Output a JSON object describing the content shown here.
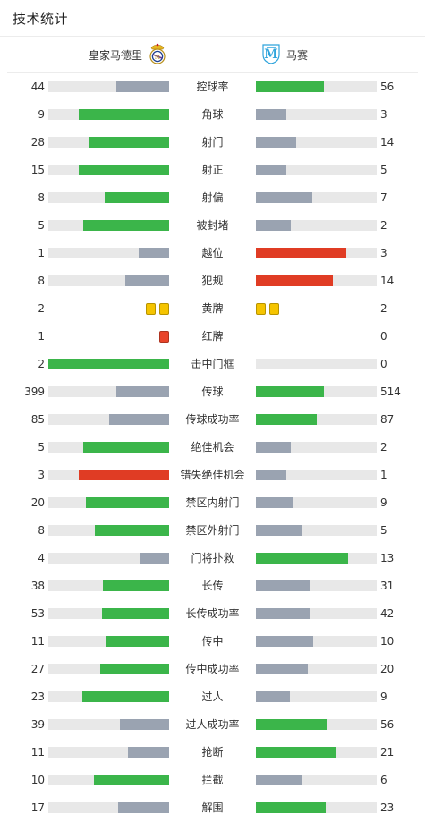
{
  "header": {
    "title": "技术统计"
  },
  "teams": {
    "home": {
      "name": "皇家马德里"
    },
    "away": {
      "name": "马赛"
    }
  },
  "colors": {
    "win": "#3bb54a",
    "lose": "#9aa3b1",
    "highlight": "#e03c24",
    "track": "#e8e8e8",
    "yellow_card": "#f5c400",
    "red_card": "#e8442a"
  },
  "stats": [
    {
      "label": "控球率",
      "home": "44",
      "away": "56",
      "home_frac": 0.44,
      "away_frac": 0.56,
      "home_color": "lose",
      "away_color": "win"
    },
    {
      "label": "角球",
      "home": "9",
      "away": "3",
      "home_frac": 0.75,
      "away_frac": 0.25,
      "home_color": "win",
      "away_color": "lose"
    },
    {
      "label": "射门",
      "home": "28",
      "away": "14",
      "home_frac": 0.667,
      "away_frac": 0.333,
      "home_color": "win",
      "away_color": "lose"
    },
    {
      "label": "射正",
      "home": "15",
      "away": "5",
      "home_frac": 0.75,
      "away_frac": 0.25,
      "home_color": "win",
      "away_color": "lose"
    },
    {
      "label": "射偏",
      "home": "8",
      "away": "7",
      "home_frac": 0.533,
      "away_frac": 0.467,
      "home_color": "win",
      "away_color": "lose"
    },
    {
      "label": "被封堵",
      "home": "5",
      "away": "2",
      "home_frac": 0.714,
      "away_frac": 0.286,
      "home_color": "win",
      "away_color": "lose"
    },
    {
      "label": "越位",
      "home": "1",
      "away": "3",
      "home_frac": 0.25,
      "away_frac": 0.75,
      "home_color": "lose",
      "away_color": "highlight"
    },
    {
      "label": "犯规",
      "home": "8",
      "away": "14",
      "home_frac": 0.364,
      "away_frac": 0.636,
      "home_color": "lose",
      "away_color": "highlight"
    },
    {
      "label": "黄牌",
      "home": "2",
      "away": "2",
      "kind": "yellow",
      "home_cards": 2,
      "away_cards": 2
    },
    {
      "label": "红牌",
      "home": "1",
      "away": "0",
      "kind": "red",
      "home_cards": 1,
      "away_cards": 0
    },
    {
      "label": "击中门框",
      "home": "2",
      "away": "0",
      "home_frac": 1.0,
      "away_frac": 0.0,
      "home_color": "win",
      "away_color": "lose"
    },
    {
      "label": "传球",
      "home": "399",
      "away": "514",
      "home_frac": 0.437,
      "away_frac": 0.563,
      "home_color": "lose",
      "away_color": "win"
    },
    {
      "label": "传球成功率",
      "home": "85",
      "away": "87",
      "home_frac": 0.494,
      "away_frac": 0.506,
      "home_color": "lose",
      "away_color": "win"
    },
    {
      "label": "绝佳机会",
      "home": "5",
      "away": "2",
      "home_frac": 0.714,
      "away_frac": 0.286,
      "home_color": "win",
      "away_color": "lose"
    },
    {
      "label": "错失绝佳机会",
      "home": "3",
      "away": "1",
      "home_frac": 0.75,
      "away_frac": 0.25,
      "home_color": "highlight",
      "away_color": "lose"
    },
    {
      "label": "禁区内射门",
      "home": "20",
      "away": "9",
      "home_frac": 0.69,
      "away_frac": 0.31,
      "home_color": "win",
      "away_color": "lose"
    },
    {
      "label": "禁区外射门",
      "home": "8",
      "away": "5",
      "home_frac": 0.615,
      "away_frac": 0.385,
      "home_color": "win",
      "away_color": "lose"
    },
    {
      "label": "门将扑救",
      "home": "4",
      "away": "13",
      "home_frac": 0.235,
      "away_frac": 0.765,
      "home_color": "lose",
      "away_color": "win"
    },
    {
      "label": "长传",
      "home": "38",
      "away": "31",
      "home_frac": 0.551,
      "away_frac": 0.449,
      "home_color": "win",
      "away_color": "lose"
    },
    {
      "label": "长传成功率",
      "home": "53",
      "away": "42",
      "home_frac": 0.558,
      "away_frac": 0.442,
      "home_color": "win",
      "away_color": "lose"
    },
    {
      "label": "传中",
      "home": "11",
      "away": "10",
      "home_frac": 0.524,
      "away_frac": 0.476,
      "home_color": "win",
      "away_color": "lose"
    },
    {
      "label": "传中成功率",
      "home": "27",
      "away": "20",
      "home_frac": 0.574,
      "away_frac": 0.426,
      "home_color": "win",
      "away_color": "lose"
    },
    {
      "label": "过人",
      "home": "23",
      "away": "9",
      "home_frac": 0.719,
      "away_frac": 0.281,
      "home_color": "win",
      "away_color": "lose"
    },
    {
      "label": "过人成功率",
      "home": "39",
      "away": "56",
      "home_frac": 0.411,
      "away_frac": 0.589,
      "home_color": "lose",
      "away_color": "win"
    },
    {
      "label": "抢断",
      "home": "11",
      "away": "21",
      "home_frac": 0.344,
      "away_frac": 0.656,
      "home_color": "lose",
      "away_color": "win"
    },
    {
      "label": "拦截",
      "home": "10",
      "away": "6",
      "home_frac": 0.625,
      "away_frac": 0.375,
      "home_color": "win",
      "away_color": "lose"
    },
    {
      "label": "解围",
      "home": "17",
      "away": "23",
      "home_frac": 0.425,
      "away_frac": 0.575,
      "home_color": "lose",
      "away_color": "win"
    }
  ]
}
